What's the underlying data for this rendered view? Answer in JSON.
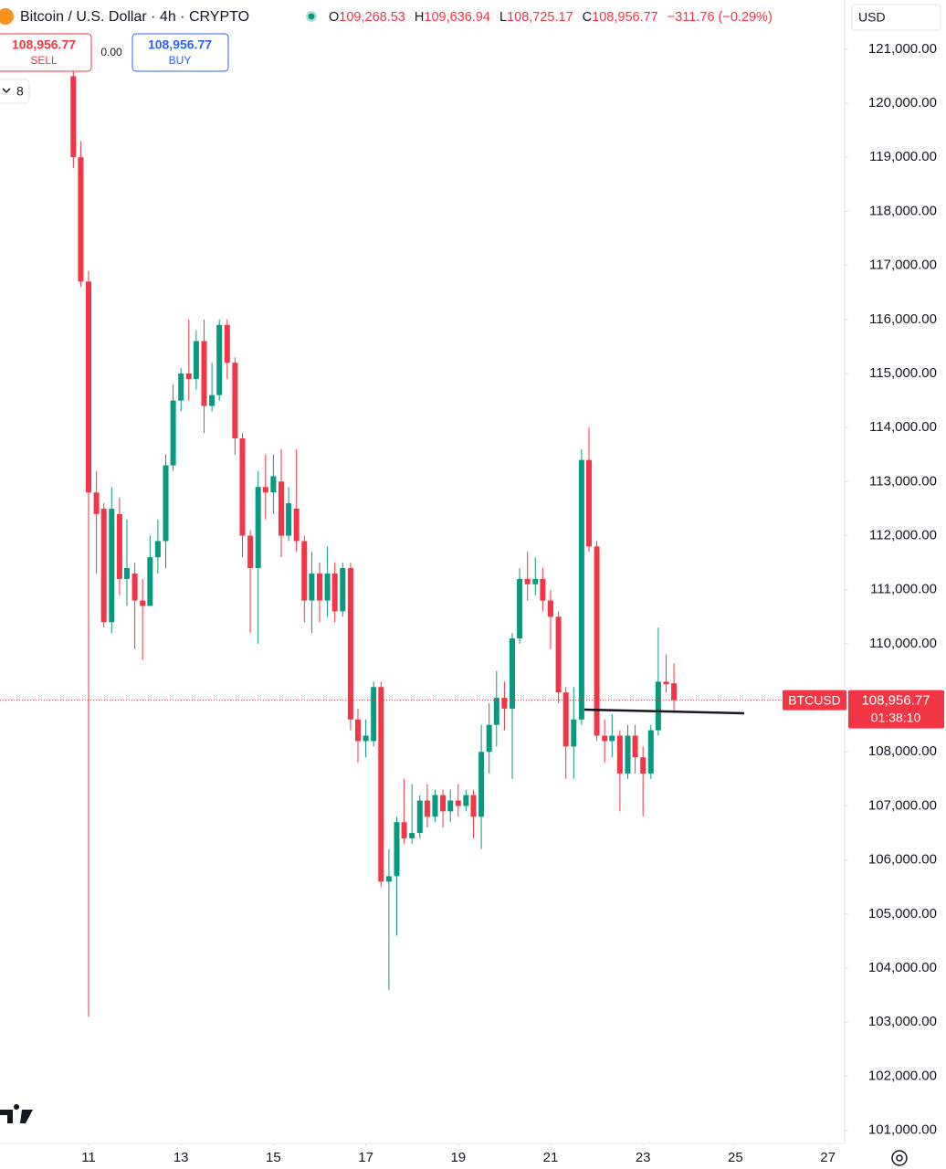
{
  "header": {
    "symbol": "Bitcoin / U.S. Dollar · 4h · CRYPTO",
    "ohlc": [
      {
        "label": "O",
        "value": "109,268.53"
      },
      {
        "label": "H",
        "value": "109,636.94"
      },
      {
        "label": "L",
        "value": "108,725.17"
      },
      {
        "label": "C",
        "value": "108,956.77"
      }
    ],
    "change": "−311.76 (−0.29%)",
    "sell": {
      "price": "108,956.77",
      "label": "SELL"
    },
    "spread": "0.00",
    "buy": {
      "price": "108,956.77",
      "label": "BUY"
    },
    "indicators": "8",
    "currency": "USD",
    "price_tag": {
      "symbol": "BTCUSD",
      "price": "108,956.77",
      "countdown": "01:38:10"
    }
  },
  "chart_data": {
    "type": "candlestick",
    "up_color": "#089981",
    "down_color": "#f23645",
    "grid": false,
    "xlim": [
      9.083,
      27.364
    ],
    "xticks": [
      11,
      13,
      15,
      17,
      19,
      21,
      23,
      25,
      27
    ],
    "ylim": [
      100790,
      121910
    ],
    "yticks": [
      {
        "value": 101000,
        "label": "101,000.00"
      },
      {
        "value": 102000,
        "label": "102,000.00"
      },
      {
        "value": 103000,
        "label": "103,000.00"
      },
      {
        "value": 104000,
        "label": "104,000.00"
      },
      {
        "value": 105000,
        "label": "105,000.00"
      },
      {
        "value": 106000,
        "label": "106,000.00"
      },
      {
        "value": 107000,
        "label": "107,000.00"
      },
      {
        "value": 108000,
        "label": "108,000.00"
      },
      {
        "value": 109000,
        "label": "109,000.00"
      },
      {
        "value": 110000,
        "label": "110,000.00"
      },
      {
        "value": 111000,
        "label": "111,000.00"
      },
      {
        "value": 112000,
        "label": "112,000.00"
      },
      {
        "value": 113000,
        "label": "113,000.00"
      },
      {
        "value": 114000,
        "label": "114,000.00"
      },
      {
        "value": 115000,
        "label": "115,000.00"
      },
      {
        "value": 116000,
        "label": "116,000.00"
      },
      {
        "value": 117000,
        "label": "117,000.00"
      },
      {
        "value": 118000,
        "label": "118,000.00"
      },
      {
        "value": 119000,
        "label": "119,000.00"
      },
      {
        "value": 120000,
        "label": "120,000.00"
      },
      {
        "value": 121000,
        "label": "121,000.00"
      }
    ],
    "x": [
      10.67,
      10.83,
      11,
      11.17,
      11.33,
      11.5,
      11.67,
      11.83,
      12,
      12.17,
      12.33,
      12.5,
      12.67,
      12.83,
      13,
      13.17,
      13.33,
      13.5,
      13.67,
      13.83,
      14,
      14.17,
      14.33,
      14.5,
      14.67,
      14.83,
      15,
      15.17,
      15.33,
      15.5,
      15.67,
      15.83,
      16,
      16.17,
      16.33,
      16.5,
      16.67,
      16.83,
      17,
      17.17,
      17.33,
      17.5,
      17.67,
      17.83,
      18,
      18.17,
      18.33,
      18.5,
      18.67,
      18.83,
      19,
      19.17,
      19.33,
      19.5,
      19.67,
      19.83,
      20,
      20.17,
      20.33,
      20.5,
      20.67,
      20.83,
      21,
      21.17,
      21.33,
      21.5,
      21.67,
      21.83,
      22,
      22.17,
      22.33,
      22.5,
      22.67,
      22.83,
      23,
      23.17,
      23.33,
      23.5,
      23.67
    ],
    "open": [
      120500,
      119000,
      116700,
      112800,
      112500,
      110400,
      112400,
      111200,
      111300,
      110800,
      110700,
      111600,
      111900,
      113300,
      114500,
      115000,
      114900,
      115600,
      114400,
      114600,
      115900,
      115200,
      113800,
      112000,
      111400,
      112900,
      112800,
      113000,
      112000,
      112500,
      111900,
      110800,
      111300,
      110800,
      111300,
      110600,
      111400,
      108600,
      108200,
      108200,
      109200,
      105600,
      105700,
      106700,
      106400,
      106500,
      107100,
      106800,
      107200,
      106900,
      107100,
      107000,
      107200,
      106800,
      108000,
      108500,
      109000,
      108800,
      110100,
      111200,
      111100,
      111200,
      110800,
      110500,
      109100,
      108100,
      108600,
      113400,
      111800,
      108300,
      108200,
      108300,
      107600,
      108300,
      107900,
      107600,
      108400,
      109300,
      109268.53
    ],
    "high": [
      121000,
      119300,
      116900,
      113200,
      112600,
      112900,
      112700,
      112300,
      111500,
      111200,
      112000,
      112300,
      113500,
      114800,
      115100,
      116000,
      115800,
      116000,
      115200,
      116000,
      116000,
      115300,
      113900,
      112100,
      113200,
      113500,
      113500,
      113600,
      112900,
      113600,
      112000,
      111700,
      111500,
      111800,
      111500,
      111500,
      111500,
      108800,
      108600,
      109300,
      109300,
      106200,
      106800,
      107500,
      107400,
      107200,
      107400,
      107300,
      107300,
      107300,
      107400,
      107300,
      107300,
      108500,
      108900,
      109500,
      109300,
      110200,
      111400,
      111700,
      111600,
      111400,
      111000,
      110600,
      109200,
      109200,
      113600,
      114000,
      111900,
      108600,
      108700,
      108400,
      108500,
      108500,
      108100,
      108500,
      110300,
      109800,
      109636.94
    ],
    "low": [
      118800,
      116600,
      103100,
      111300,
      110300,
      110200,
      110900,
      110700,
      109900,
      109700,
      110700,
      111300,
      111400,
      113200,
      114300,
      114500,
      114700,
      113900,
      114300,
      114500,
      114900,
      113500,
      111600,
      110200,
      110000,
      112300,
      112400,
      111600,
      111900,
      111700,
      110400,
      110200,
      110400,
      110500,
      110400,
      110500,
      108400,
      107800,
      107900,
      108100,
      105500,
      103600,
      104600,
      106300,
      106300,
      106400,
      106600,
      106700,
      106600,
      106700,
      106800,
      106900,
      106400,
      106200,
      107600,
      108100,
      108400,
      107500,
      110000,
      110800,
      110900,
      110600,
      109900,
      108900,
      107500,
      107500,
      108500,
      111700,
      108200,
      107800,
      107900,
      106900,
      107500,
      107600,
      106800,
      107500,
      108300,
      109100,
      108725.17
    ],
    "close": [
      119000,
      116700,
      112800,
      112400,
      110400,
      112500,
      111200,
      111400,
      110800,
      110700,
      111600,
      111900,
      113300,
      114500,
      115000,
      114900,
      115600,
      114400,
      114600,
      115900,
      115200,
      113800,
      112000,
      111400,
      112900,
      112800,
      113100,
      112000,
      112600,
      111900,
      110800,
      111300,
      110800,
      111300,
      110600,
      111400,
      108600,
      108200,
      108300,
      109200,
      105600,
      105700,
      106700,
      106400,
      106500,
      107100,
      106800,
      107200,
      106900,
      107100,
      107000,
      107200,
      106800,
      108000,
      108500,
      109000,
      108800,
      110100,
      111200,
      111100,
      111200,
      110800,
      110500,
      109100,
      108100,
      108600,
      113400,
      111800,
      108300,
      108200,
      108300,
      107600,
      108300,
      107900,
      107600,
      108400,
      109300,
      109250,
      108956.77
    ]
  }
}
